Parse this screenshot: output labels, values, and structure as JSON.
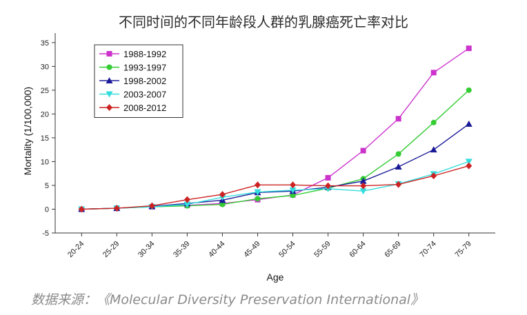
{
  "page": {
    "title": "不同时间的不同年龄段人群的乳腺癌死亡率对比",
    "source": "数据来源：《Molecular Diversity Preservation International》"
  },
  "chart_data": {
    "type": "line",
    "title": "不同时间的不同年龄段人群的乳腺癌死亡率对比",
    "xlabel": "Age",
    "ylabel": "Mortality (1/100,000)",
    "categories": [
      "20-24",
      "25-29",
      "30-34",
      "35-39",
      "40-44",
      "45-49",
      "50-54",
      "55-59",
      "60-64",
      "65-69",
      "70-74",
      "75-79"
    ],
    "ylim": [
      -5,
      37
    ],
    "yticks": [
      -5,
      0,
      5,
      10,
      15,
      20,
      25,
      30,
      35
    ],
    "grid": false,
    "legend_position": "top-left",
    "series": [
      {
        "name": "1988-1992",
        "color": "#cc33cc",
        "marker": "square",
        "values": [
          0,
          0.2,
          0.5,
          0.8,
          1.2,
          2.0,
          3.0,
          6.6,
          12.3,
          19.0,
          28.7,
          33.8
        ]
      },
      {
        "name": "1993-1997",
        "color": "#33cc33",
        "marker": "circle",
        "values": [
          0,
          0.2,
          0.5,
          0.7,
          1.0,
          2.2,
          2.9,
          4.4,
          6.4,
          11.6,
          18.2,
          25.0
        ]
      },
      {
        "name": "1998-2002",
        "color": "#1a1a99",
        "marker": "triangle-up",
        "values": [
          0,
          0.2,
          0.6,
          1.2,
          1.9,
          3.5,
          3.8,
          4.6,
          5.9,
          8.9,
          12.5,
          17.9
        ]
      },
      {
        "name": "2003-2007",
        "color": "#33dddd",
        "marker": "triangle-down",
        "values": [
          0,
          0.2,
          0.5,
          1.0,
          2.5,
          3.6,
          4.0,
          4.3,
          3.8,
          5.3,
          7.4,
          10.0
        ]
      },
      {
        "name": "2008-2012",
        "color": "#cc2222",
        "marker": "diamond",
        "values": [
          0,
          0.2,
          0.7,
          2.0,
          3.1,
          5.1,
          5.1,
          4.9,
          4.9,
          5.2,
          7.0,
          9.1
        ]
      }
    ]
  }
}
